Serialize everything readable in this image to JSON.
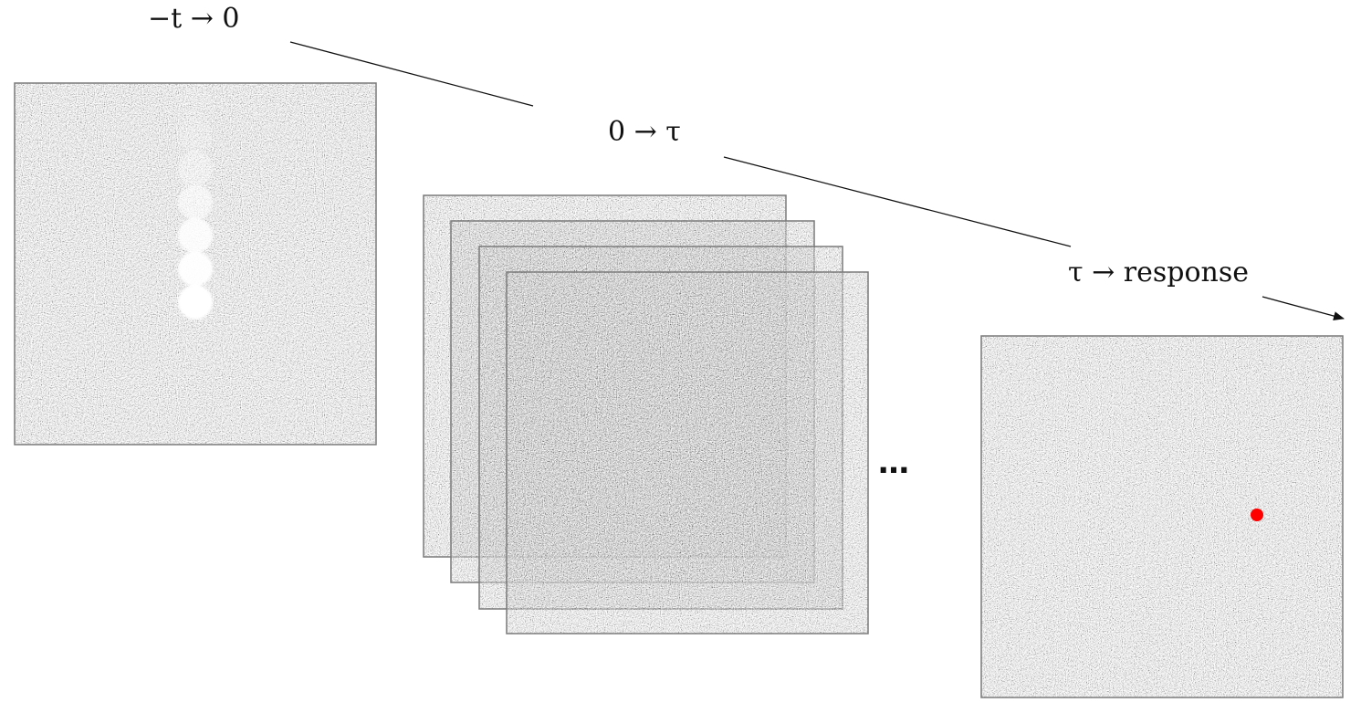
{
  "labels": {
    "stage1": "−t → 0",
    "stage2": "0 → τ",
    "stage3": "τ → response"
  },
  "ellipsis": "…",
  "colors": {
    "frame_border": "#7a7a7a",
    "noise_dark": "#3a3a3a",
    "noise_light": "#f2f2f2",
    "stimulus_disc": "#ffffff",
    "response_dot": "#ff0000",
    "line": "#111111"
  },
  "stimulus_trail_opacities": [
    0.08,
    0.18,
    0.35,
    0.6,
    0.85,
    0.95,
    1.0
  ],
  "noise_frame_count": 4
}
